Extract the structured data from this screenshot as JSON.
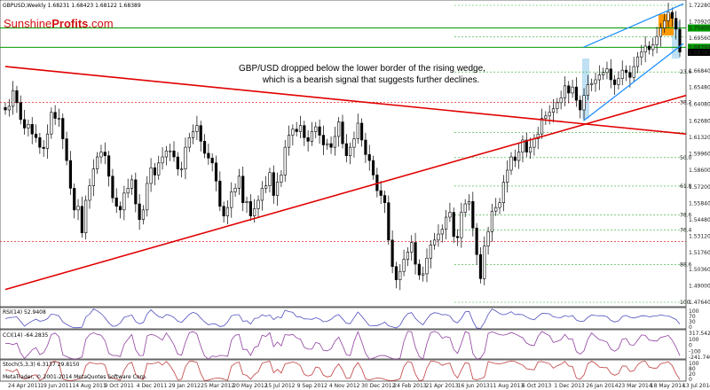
{
  "header": {
    "symbol_line": "GBPUSD,Weekly  1.68231 1.68423 1.68122 1.68389"
  },
  "logo": {
    "part1": "Sunshine",
    "part2": "Profits",
    "part3": ".com",
    "color1": "#d01010",
    "color2": "#d01010"
  },
  "annotation": {
    "line1": "GBP/USD dropped below the lower border of the rising wedge,",
    "line2": "which is a bearish signal that suggests further declines."
  },
  "price_axis": {
    "labels": [
      "1.72280",
      "1.70920",
      "1.70400",
      "1.69560",
      "1.68799",
      "1.68380",
      "1.68200",
      "1.66840",
      "1.65480",
      "1.64080",
      "1.62680",
      "1.61320",
      "1.59960",
      "1.58600",
      "1.57200",
      "1.55840",
      "1.54480",
      "1.53120",
      "1.51760",
      "1.50360",
      "1.49000",
      "1.47640"
    ]
  },
  "fib_labels": [
    "23.6",
    "38.2",
    "50.0",
    "61.8",
    "78.6",
    "76.4",
    "88.6",
    "100",
    "38.2",
    "23.6"
  ],
  "date_axis": {
    "labels": [
      "24 Apr 2011",
      "19 Jun 2011",
      "14 Aug 2011",
      "9 Oct 2011",
      "4 Dec 2011",
      "29 Jan 2012",
      "25 Mar 2012",
      "20 May 2012",
      "15 Jul 2012",
      "9 Sep 2012",
      "4 Nov 2012",
      "30 Dec 2012",
      "24 Feb 2013",
      "21 Apr 2013",
      "16 Jun 2013",
      "11 Aug 2013",
      "6 Oct 2013",
      "1 Dec 2013",
      "26 Jan 2014",
      "23 Mar 2014",
      "18 May 2014",
      "13 Jul 2014"
    ]
  },
  "indicators": {
    "rsi": {
      "label": "RSI(14) 52.9408",
      "ticks": [
        "100",
        "70",
        "30",
        "0"
      ]
    },
    "cci": {
      "label": "CCI(14) -64.2835",
      "ticks": [
        "317.542",
        "100",
        "0",
        "-100",
        "-241.7409"
      ]
    },
    "stoch": {
      "label": "Stoch(5,3,3) 6.3137 29.8150",
      "ticks": [
        "100",
        "80",
        "20",
        "0"
      ]
    },
    "footer": "MetaTrader, © 2001-2014 MetaQuotes Software Corp."
  },
  "colors": {
    "up": "#ffffff",
    "down": "#000000",
    "red_trend": "#e00000",
    "green_level": "#009900",
    "wedge": "#1e90ff",
    "orange": "#ff9900",
    "fib": "#33aa33",
    "indicator": "#5050c0"
  },
  "chart_data": {
    "type": "candlestick",
    "title": "GBPUSD,Weekly",
    "ohlc_last": {
      "open": 1.68231,
      "high": 1.68423,
      "low": 1.68122,
      "close": 1.68389
    },
    "ylim": [
      1.4764,
      1.7228
    ],
    "x_range": [
      "24 Apr 2011",
      "13 Jul 2014"
    ],
    "closes": [
      1.636,
      1.639,
      1.652,
      1.642,
      1.628,
      1.621,
      1.624,
      1.616,
      1.613,
      1.605,
      1.604,
      1.616,
      1.634,
      1.629,
      1.629,
      1.612,
      1.594,
      1.571,
      1.553,
      1.556,
      1.534,
      1.561,
      1.573,
      1.587,
      1.597,
      1.601,
      1.598,
      1.581,
      1.563,
      1.556,
      1.553,
      1.567,
      1.571,
      1.578,
      1.558,
      1.545,
      1.553,
      1.575,
      1.588,
      1.582,
      1.592,
      1.597,
      1.602,
      1.602,
      1.597,
      1.587,
      1.587,
      1.605,
      1.613,
      1.618,
      1.623,
      1.61,
      1.6,
      1.596,
      1.592,
      1.577,
      1.556,
      1.548,
      1.555,
      1.568,
      1.571,
      1.581,
      1.559,
      1.56,
      1.548,
      1.554,
      1.561,
      1.571,
      1.573,
      1.584,
      1.565,
      1.576,
      1.582,
      1.605,
      1.615,
      1.62,
      1.618,
      1.623,
      1.613,
      1.61,
      1.618,
      1.622,
      1.615,
      1.607,
      1.608,
      1.605,
      1.614,
      1.626,
      1.608,
      1.598,
      1.605,
      1.612,
      1.625,
      1.611,
      1.599,
      1.594,
      1.582,
      1.569,
      1.565,
      1.559,
      1.528,
      1.506,
      1.495,
      1.502,
      1.512,
      1.518,
      1.526,
      1.508,
      1.499,
      1.5,
      1.513,
      1.524,
      1.528,
      1.533,
      1.537,
      1.547,
      1.551,
      1.531,
      1.53,
      1.551,
      1.558,
      1.56,
      1.538,
      1.516,
      1.496,
      1.523,
      1.535,
      1.552,
      1.555,
      1.559,
      1.576,
      1.586,
      1.597,
      1.594,
      1.601,
      1.611,
      1.601,
      1.605,
      1.612,
      1.616,
      1.629,
      1.631,
      1.634,
      1.637,
      1.642,
      1.646,
      1.656,
      1.65,
      1.655,
      1.644,
      1.636,
      1.648,
      1.657,
      1.658,
      1.661,
      1.665,
      1.667,
      1.67,
      1.661,
      1.657,
      1.662,
      1.669,
      1.667,
      1.663,
      1.672,
      1.68,
      1.684,
      1.689,
      1.686,
      1.69,
      1.697,
      1.704,
      1.71,
      1.717,
      1.712,
      1.703,
      1.684
    ],
    "lines": [
      {
        "name": "red declining trend line",
        "from": [
          "24 Apr 2011",
          1.672
        ],
        "to": [
          "13 Jul 2014",
          1.616
        ]
      },
      {
        "name": "red rising trend line",
        "from": [
          "24 Apr 2011",
          1.487
        ],
        "to": [
          "13 Jul 2014",
          1.648
        ]
      },
      {
        "name": "green resistance",
        "value": 1.704
      },
      {
        "name": "green support",
        "value": 1.688
      },
      {
        "name": "wedge upper",
        "from": [
          "26 Jan 2014",
          1.688
        ],
        "to": [
          "13 Jul 2014",
          1.724
        ]
      },
      {
        "name": "wedge lower",
        "from": [
          "26 Jan 2014",
          1.627
        ],
        "to": [
          "13 Jul 2014",
          1.691
        ]
      }
    ],
    "fib_levels": [
      1.7228,
      1.6968,
      1.6675,
      1.6424,
      1.6173,
      1.5964,
      1.5728,
      1.5489,
      1.5365,
      1.5268,
      1.5076,
      1.4764
    ]
  }
}
